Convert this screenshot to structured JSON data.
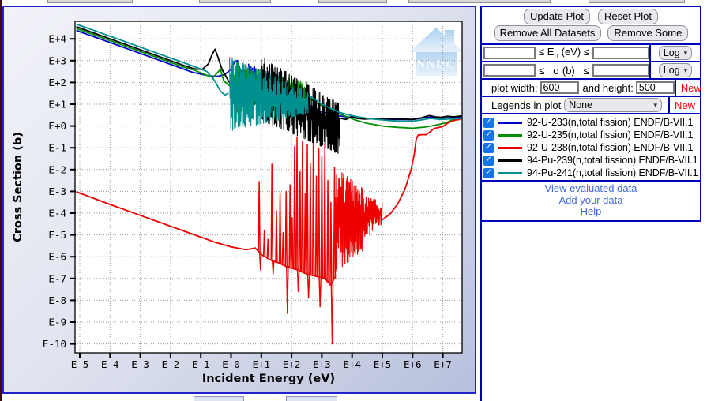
{
  "plot": {
    "watermark_text": "NNDC"
  },
  "chart_data": {
    "type": "line",
    "title": "",
    "xlabel": "Incident Energy (eV)",
    "ylabel": "Cross Section (b)",
    "x_scale": "log",
    "y_scale": "log",
    "grid": true,
    "legend_position": "none",
    "x_ticks": [
      "E-5",
      "E-4",
      "E-3",
      "E-2",
      "E-1",
      "E+0",
      "E+1",
      "E+2",
      "E+3",
      "E+4",
      "E+5",
      "E+6",
      "E+7"
    ],
    "y_ticks": [
      "E+4",
      "E+3",
      "E+2",
      "E+1",
      "E+0",
      "E-1",
      "E-2",
      "E-3",
      "E-4",
      "E-5",
      "E-6",
      "E-7",
      "E-8",
      "E-9",
      "E-10"
    ],
    "xlim_log": [
      -5.16,
      7.64
    ],
    "ylim_log": [
      -10.4,
      4.8
    ],
    "series": [
      {
        "name": "92-U-233(n,total fission) ENDF/B-VII.1",
        "color": "#0000cc",
        "segments": [
          {
            "type": "line",
            "pts": [
              [
                -5.1,
                4.38
              ],
              [
                -5,
                4.33
              ],
              [
                -4,
                3.83
              ],
              [
                -3,
                3.33
              ],
              [
                -2,
                2.83
              ],
              [
                -1.3,
                2.48
              ],
              [
                -1,
                2.38
              ],
              [
                -0.7,
                2.3
              ],
              [
                -0.45,
                2.28
              ],
              [
                -0.2,
                2.37
              ],
              [
                0.0,
                2.6
              ],
              [
                0.12,
                2.95
              ],
              [
                0.2,
                3.0
              ],
              [
                0.3,
                2.6
              ],
              [
                0.42,
                2.3
              ],
              [
                0.5,
                2.35
              ]
            ]
          },
          {
            "type": "band",
            "x0": 0.5,
            "x1": 1.7,
            "top0": 2.9,
            "top1": 2.4,
            "bot0": 1.7,
            "bot1": 1.6,
            "step": 0.02
          },
          {
            "type": "line",
            "pts": [
              [
                1.7,
                2.0
              ],
              [
                2.0,
                1.6
              ],
              [
                2.3,
                1.25
              ],
              [
                2.6,
                0.95
              ],
              [
                3.0,
                0.65
              ],
              [
                3.4,
                0.5
              ],
              [
                3.8,
                0.42
              ],
              [
                4.2,
                0.36
              ],
              [
                4.8,
                0.33
              ],
              [
                5.4,
                0.3
              ],
              [
                6.0,
                0.3
              ],
              [
                6.4,
                0.38
              ],
              [
                6.7,
                0.42
              ],
              [
                6.9,
                0.36
              ],
              [
                7.1,
                0.36
              ],
              [
                7.35,
                0.4
              ],
              [
                7.6,
                0.42
              ]
            ]
          }
        ]
      },
      {
        "name": "92-U-235(n,total fission) ENDF/B-VII.1",
        "color": "#008f00",
        "segments": [
          {
            "type": "line",
            "pts": [
              [
                -5.1,
                4.47
              ],
              [
                -5,
                4.42
              ],
              [
                -4,
                3.92
              ],
              [
                -3,
                3.42
              ],
              [
                -2,
                2.92
              ],
              [
                -1.5,
                2.67
              ],
              [
                -1.2,
                2.56
              ],
              [
                -0.9,
                2.38
              ],
              [
                -0.6,
                2.22
              ],
              [
                -0.35,
                2.6
              ],
              [
                -0.25,
                2.1
              ],
              [
                -0.1,
                1.9
              ],
              [
                0.0,
                1.8
              ]
            ]
          },
          {
            "type": "band",
            "x0": 0.0,
            "x1": 2.55,
            "top0": 3.05,
            "top1": 2.0,
            "bot0": 0.55,
            "bot1": 1.05,
            "step": 0.016
          },
          {
            "type": "line",
            "pts": [
              [
                2.55,
                1.3
              ],
              [
                2.9,
                1.0
              ],
              [
                3.3,
                0.75
              ],
              [
                3.7,
                0.5
              ],
              [
                4.1,
                0.28
              ],
              [
                4.5,
                0.12
              ],
              [
                5.0,
                0.0
              ],
              [
                5.5,
                -0.06
              ],
              [
                6.0,
                -0.1
              ],
              [
                6.4,
                -0.05
              ],
              [
                6.8,
                0.05
              ],
              [
                7.1,
                0.15
              ],
              [
                7.35,
                0.3
              ],
              [
                7.6,
                0.33
              ]
            ]
          }
        ]
      },
      {
        "name": "92-U-238(n,total fission) ENDF/B-VII.1",
        "color": "#ee0000",
        "segments": [
          {
            "type": "line",
            "pts": [
              [
                -5.1,
                -3.03
              ],
              [
                -5,
                -3.08
              ],
              [
                -4,
                -3.6
              ],
              [
                -3,
                -4.1
              ],
              [
                -2,
                -4.6
              ],
              [
                -1,
                -5.1
              ],
              [
                -0.5,
                -5.35
              ],
              [
                0.0,
                -5.55
              ],
              [
                0.5,
                -5.68
              ],
              [
                0.8,
                -5.6
              ]
            ]
          },
          {
            "type": "spikes",
            "base": [
              [
                0.8,
                -5.6
              ],
              [
                1.0,
                -5.9
              ],
              [
                1.3,
                -6.15
              ],
              [
                1.6,
                -6.3
              ],
              [
                1.9,
                -6.5
              ],
              [
                2.2,
                -6.6
              ],
              [
                2.5,
                -6.8
              ],
              [
                2.8,
                -6.9
              ],
              [
                3.1,
                -7.0
              ],
              [
                3.3,
                -7.3
              ],
              [
                3.45,
                -6.9
              ]
            ],
            "spikes": [
              [
                0.93,
                -2.55,
                -6.6
              ],
              [
                1.1,
                -4.8
              ],
              [
                1.22,
                -5.2
              ],
              [
                1.35,
                -1.75,
                -6.8
              ],
              [
                1.5,
                -3.9
              ],
              [
                1.62,
                -3.1
              ],
              [
                1.72,
                -4.9
              ],
              [
                1.82,
                -3.0,
                -8.6
              ],
              [
                1.95,
                -2.7
              ],
              [
                2.02,
                -4.2
              ],
              [
                2.1,
                -0.95
              ],
              [
                2.18,
                -0.5,
                -7.6
              ],
              [
                2.28,
                -2.1
              ],
              [
                2.36,
                -0.7
              ],
              [
                2.45,
                -3.1
              ],
              [
                2.52,
                -0.85,
                -7.9
              ],
              [
                2.62,
                -1.7
              ],
              [
                2.72,
                -0.55
              ],
              [
                2.82,
                -2.3
              ],
              [
                2.9,
                -1.05,
                -8.3
              ],
              [
                3.0,
                -1.4
              ],
              [
                3.1,
                -0.8
              ],
              [
                3.2,
                -2.5
              ],
              [
                3.3,
                -3.5,
                -10.0
              ],
              [
                3.42,
                -1.9
              ]
            ]
          },
          {
            "type": "band",
            "x0": 3.45,
            "x1": 4.35,
            "top0": -1.8,
            "top1": -2.8,
            "bot0": -6.8,
            "bot1": -5.8,
            "step": 0.009
          },
          {
            "type": "band",
            "x0": 4.35,
            "x1": 5.0,
            "top0": -3.1,
            "top1": -3.5,
            "bot0": -5.3,
            "bot1": -4.5,
            "step": 0.014
          },
          {
            "type": "line",
            "pts": [
              [
                5.0,
                -4.3
              ],
              [
                5.25,
                -4.05
              ],
              [
                5.5,
                -3.6
              ],
              [
                5.75,
                -2.9
              ],
              [
                5.95,
                -2.0
              ],
              [
                6.05,
                -1.35
              ],
              [
                6.12,
                -0.6
              ],
              [
                6.18,
                -0.42
              ],
              [
                6.3,
                -0.4
              ],
              [
                6.45,
                -0.4
              ],
              [
                6.55,
                -0.3
              ],
              [
                6.7,
                -0.12
              ],
              [
                6.85,
                -0.07
              ],
              [
                7.0,
                -0.02
              ],
              [
                7.15,
                0.12
              ],
              [
                7.3,
                0.22
              ],
              [
                7.45,
                0.28
              ],
              [
                7.55,
                0.3
              ]
            ]
          }
        ]
      },
      {
        "name": "94-Pu-239(n,total fission) ENDF/B-VII.1",
        "color": "#000000",
        "segments": [
          {
            "type": "line",
            "pts": [
              [
                -5.1,
                4.55
              ],
              [
                -5,
                4.5
              ],
              [
                -4,
                4.0
              ],
              [
                -3,
                3.5
              ],
              [
                -2,
                3.0
              ],
              [
                -1.5,
                2.75
              ],
              [
                -1.2,
                2.62
              ],
              [
                -0.95,
                2.6
              ],
              [
                -0.75,
                2.85
              ],
              [
                -0.62,
                3.3
              ],
              [
                -0.53,
                3.52
              ],
              [
                -0.44,
                3.2
              ],
              [
                -0.3,
                2.6
              ],
              [
                -0.1,
                2.1
              ],
              [
                0.1,
                1.7
              ],
              [
                0.35,
                1.35
              ],
              [
                0.6,
                1.1
              ],
              [
                0.8,
                1.05
              ],
              [
                0.95,
                1.25
              ]
            ]
          },
          {
            "type": "band",
            "x0": 1.0,
            "x1": 3.6,
            "top0": 3.25,
            "top1": 1.05,
            "bot0": 0.2,
            "bot1": -1.35,
            "step": 0.014
          },
          {
            "type": "line",
            "pts": [
              [
                3.6,
                0.35
              ],
              [
                3.8,
                0.3
              ],
              [
                4.0,
                0.45
              ],
              [
                4.15,
                0.35
              ],
              [
                4.4,
                0.32
              ],
              [
                4.8,
                0.35
              ],
              [
                5.2,
                0.33
              ],
              [
                5.6,
                0.32
              ],
              [
                6.0,
                0.3
              ],
              [
                6.3,
                0.38
              ],
              [
                6.55,
                0.48
              ],
              [
                6.75,
                0.42
              ],
              [
                6.95,
                0.4
              ],
              [
                7.15,
                0.45
              ],
              [
                7.35,
                0.42
              ],
              [
                7.6,
                0.46
              ]
            ]
          }
        ]
      },
      {
        "name": "94-Pu-241(n,total fission) ENDF/B-VII.1",
        "color": "#009090",
        "segments": [
          {
            "type": "line",
            "pts": [
              [
                -5.1,
                4.67
              ],
              [
                -5,
                4.62
              ],
              [
                -4,
                4.12
              ],
              [
                -3,
                3.62
              ],
              [
                -2,
                3.12
              ],
              [
                -1.5,
                2.87
              ],
              [
                -1.1,
                2.67
              ],
              [
                -0.8,
                2.5
              ],
              [
                -0.55,
                2.1
              ],
              [
                -0.35,
                1.6
              ],
              [
                -0.2,
                1.42
              ],
              [
                -0.1,
                1.5
              ]
            ]
          },
          {
            "type": "band",
            "x0": -0.05,
            "x1": 2.55,
            "top0": 3.35,
            "top1": 1.55,
            "bot0": -0.3,
            "bot1": 0.55,
            "step": 0.015
          },
          {
            "type": "line",
            "pts": [
              [
                2.55,
                1.4
              ],
              [
                2.8,
                1.2
              ],
              [
                3.0,
                1.0
              ],
              [
                3.3,
                0.8
              ],
              [
                3.6,
                0.62
              ],
              [
                3.9,
                0.5
              ],
              [
                4.2,
                0.42
              ],
              [
                4.6,
                0.33
              ],
              [
                5.0,
                0.28
              ],
              [
                5.5,
                0.22
              ],
              [
                6.0,
                0.22
              ],
              [
                6.3,
                0.28
              ],
              [
                6.6,
                0.35
              ],
              [
                6.9,
                0.3
              ],
              [
                7.15,
                0.32
              ],
              [
                7.4,
                0.33
              ],
              [
                7.6,
                0.35
              ]
            ]
          }
        ]
      }
    ]
  },
  "panel": {
    "buttons": {
      "update": "Update Plot",
      "reset": "Reset Plot",
      "remove_all": "Remove All Datasets",
      "remove_some": "Remove Some"
    },
    "energy_filter": {
      "min_value": "",
      "prefix": "≤ E",
      "sub": "n",
      "suffix": " (eV) ≤",
      "max_value": "",
      "scale": "Log"
    },
    "sigma_filter": {
      "min_value": "",
      "le1": "≤",
      "mid": "σ (b)",
      "le2": "≤",
      "max_value": "",
      "scale": "Log"
    },
    "size_row": {
      "width_label": "plot width:",
      "width_value": "600",
      "height_label": "and height:",
      "height_value": "500",
      "new_label": "New"
    },
    "legend_row": {
      "label": "Legends in plot",
      "value": "None",
      "new_label": "New"
    },
    "datasets": [
      {
        "checked": true,
        "color": "#0000cc",
        "label": "92-U-233(n,total fission) ENDF/B-VII.1"
      },
      {
        "checked": true,
        "color": "#008f00",
        "label": "92-U-235(n,total fission) ENDF/B-VII.1"
      },
      {
        "checked": true,
        "color": "#ee0000",
        "label": "92-U-238(n,total fission) ENDF/B-VII.1"
      },
      {
        "checked": true,
        "color": "#000000",
        "label": "94-Pu-239(n,total fission) ENDF/B-VII.1"
      },
      {
        "checked": true,
        "color": "#009090",
        "label": "94-Pu-241(n,total fission) ENDF/B-VII.1"
      }
    ],
    "links": [
      "View evaluated data",
      "Add your data",
      "Help"
    ]
  }
}
